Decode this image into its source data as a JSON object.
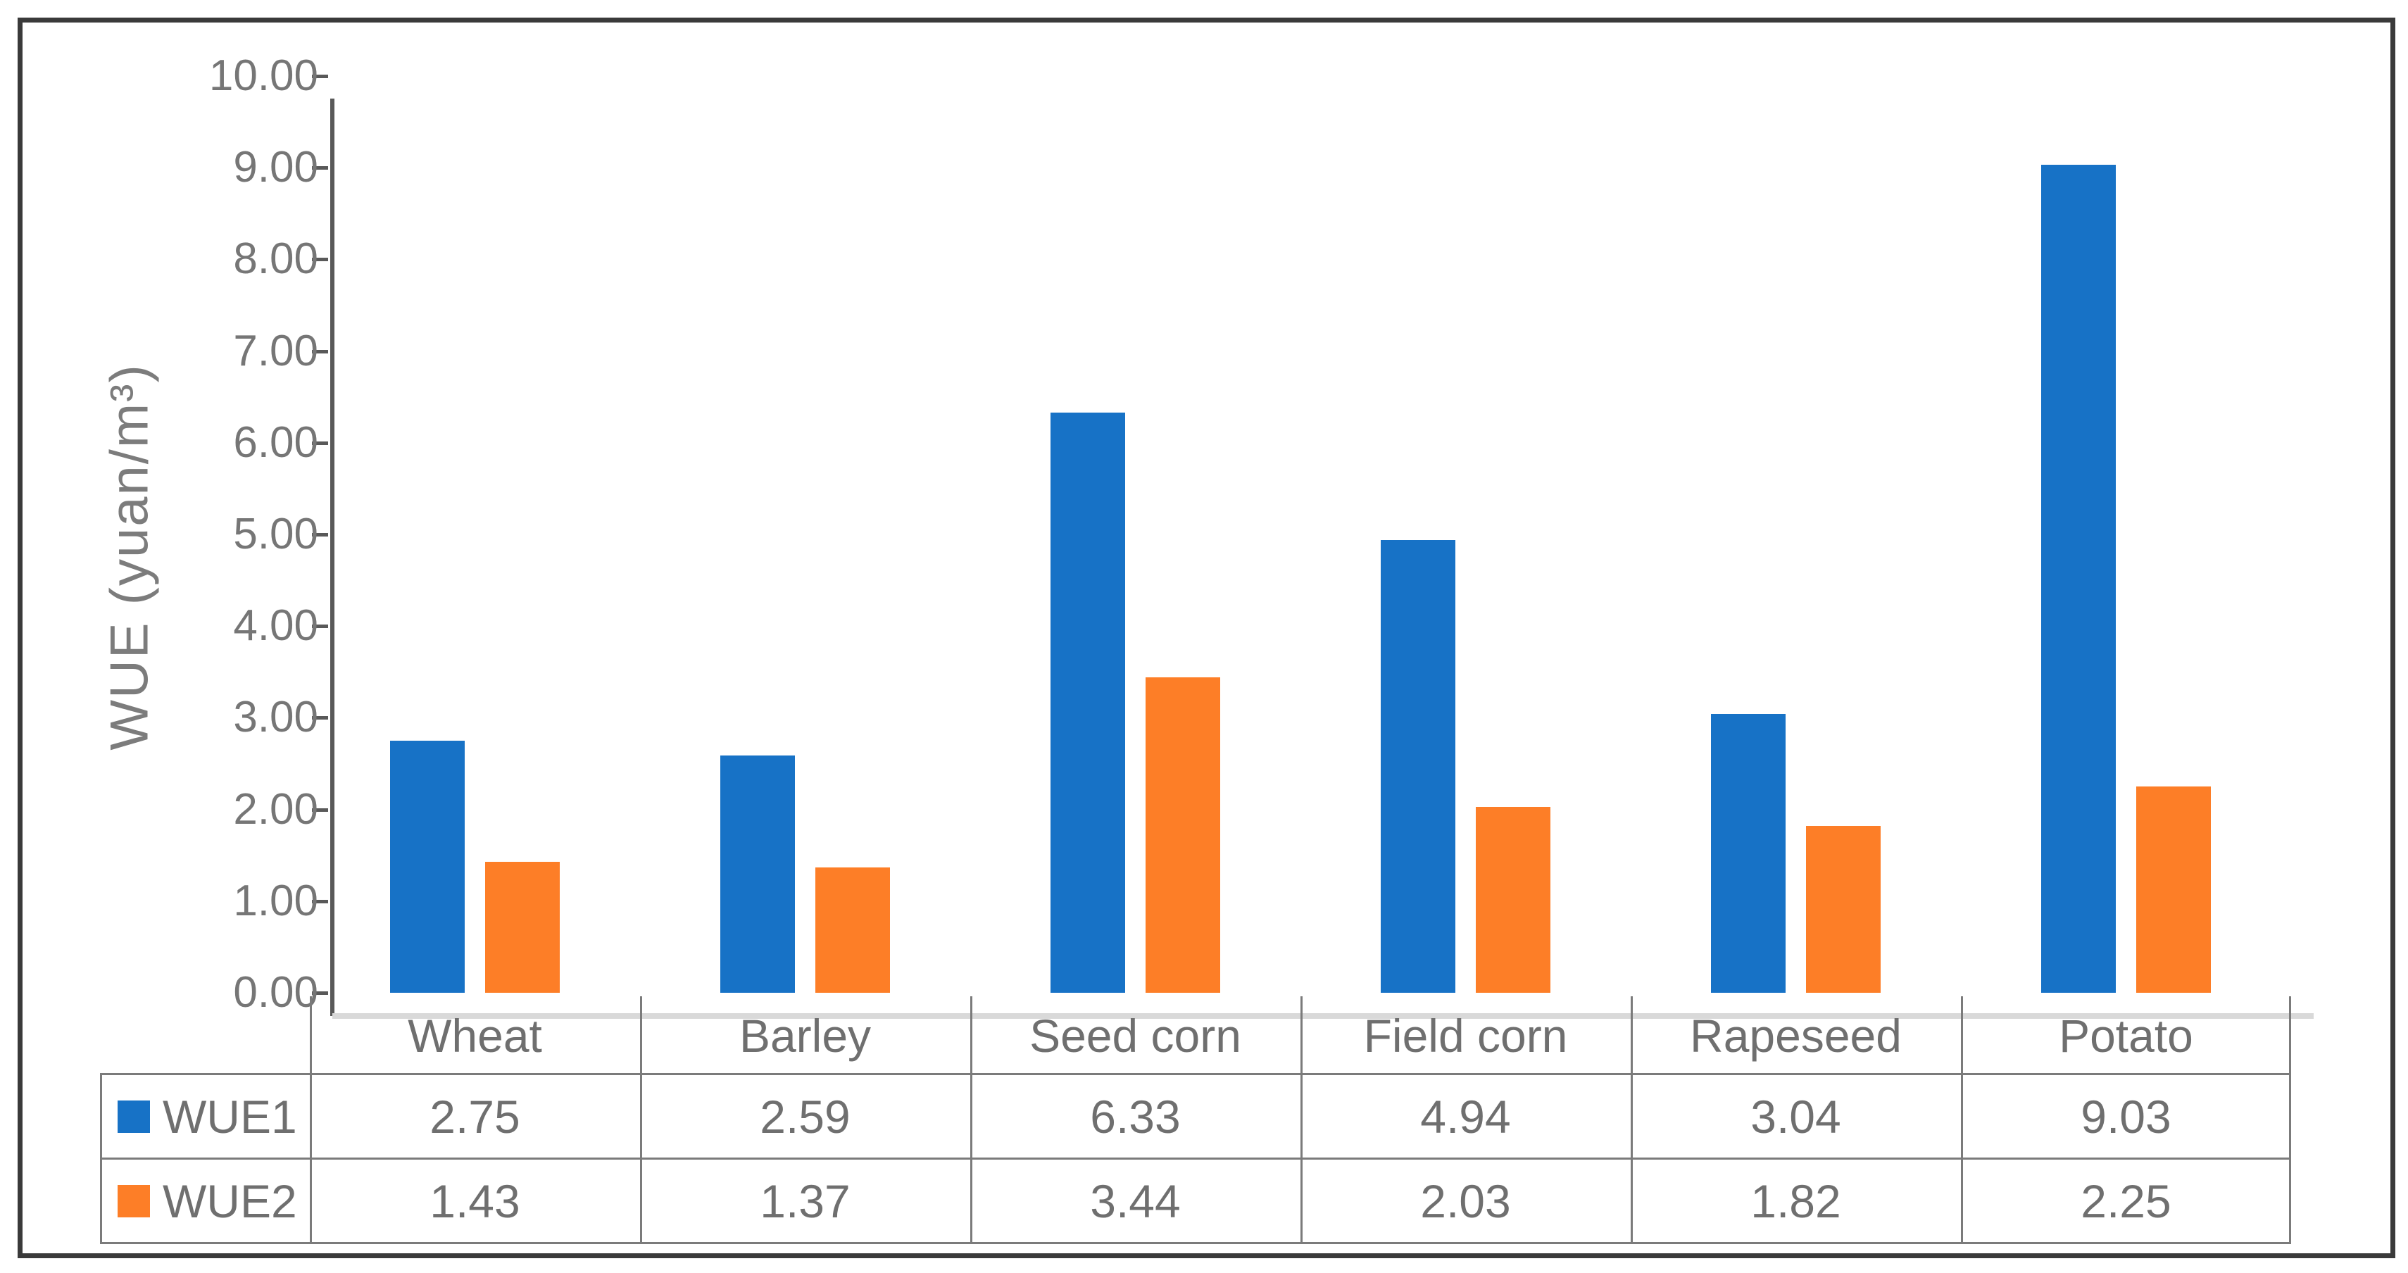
{
  "chart_data": {
    "type": "bar",
    "title": "",
    "categories": [
      "Wheat",
      "Barley",
      "Seed corn",
      "Field corn",
      "Rapeseed",
      "Potato"
    ],
    "series": [
      {
        "name": "WUE1",
        "color": "#1772c6",
        "values": [
          2.75,
          2.59,
          6.33,
          4.94,
          3.04,
          9.03
        ]
      },
      {
        "name": "WUE2",
        "color": "#fd7e27",
        "values": [
          1.43,
          1.37,
          3.44,
          2.03,
          1.82,
          2.25
        ]
      }
    ],
    "xlabel": "",
    "ylabel": "WUE (yuan/m³)",
    "ylim": [
      0,
      10
    ],
    "ytick_step": 1,
    "ytick_labels": [
      "10.00",
      "9.00",
      "8.00",
      "7.00",
      "6.00",
      "5.00",
      "4.00",
      "3.00",
      "2.00",
      "1.00",
      "0.00"
    ],
    "value_decimals": 2,
    "grid": false,
    "legend_position": "data-table-left",
    "has_data_table": true
  },
  "style_colors": {
    "outer_border": "#3a3a3a",
    "axis_line": "#595959",
    "tick_label": "#767676",
    "axis_title": "#7c7c7c",
    "table_grid": "#7b7b7b",
    "table_top_edge": "#d9d9d9",
    "table_text": "#6f6f6f",
    "background": "#ffffff"
  }
}
